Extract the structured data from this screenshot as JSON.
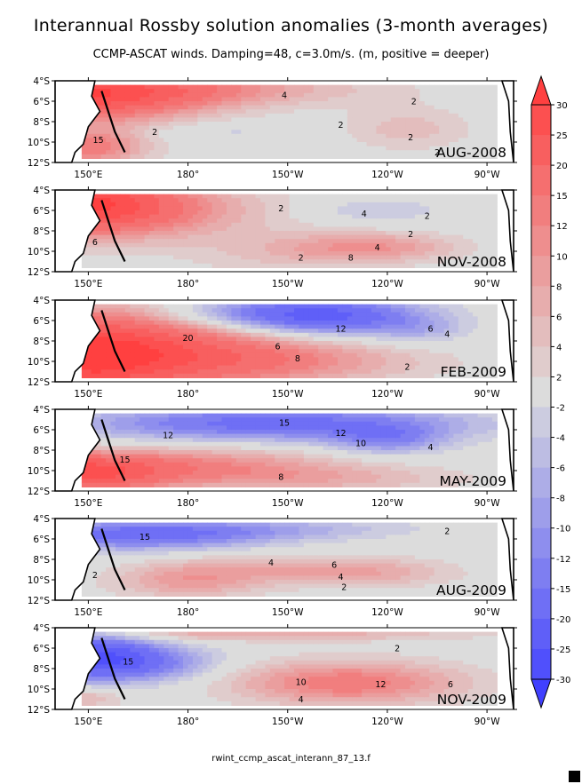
{
  "title": "Interannual Rossby solution anomalies (3-month averages)",
  "subtitle": "CCMP-ASCAT winds. Damping=48, c=3.0m/s. (m, positive = deeper)",
  "footer": "rwint_ccmp_ascat_interann_87_13.f",
  "colors": {
    "positive_max": "#ff4040",
    "neutral": "#dcdcdc",
    "negative_max": "#4040ff",
    "land": "#ffffff",
    "lines": "#000000"
  },
  "chart_data": {
    "type": "heatmap",
    "chart_kind": "contour-map",
    "x_ticks": [
      "150°E",
      "180°",
      "150°W",
      "120°W",
      "90°W"
    ],
    "y_ticks": [
      "4°S",
      "6°S",
      "8°S",
      "10°S",
      "12°S"
    ],
    "x_range_lon": [
      140,
      278
    ],
    "y_range_lat": [
      -4,
      -12
    ],
    "colorbar": {
      "levels": [
        -30,
        -25,
        -20,
        -15,
        -12,
        -10,
        -8,
        -6,
        -4,
        -2,
        2,
        4,
        6,
        8,
        10,
        12,
        15,
        20,
        25,
        30
      ],
      "labels": [
        "30",
        "25",
        "20",
        "15",
        "12",
        "10",
        "8",
        "6",
        "4",
        "2",
        "-2",
        "-4",
        "-6",
        "-8",
        "-10",
        "-12",
        "-15",
        "-20",
        "-25",
        "-30"
      ]
    },
    "panels": [
      {
        "period": "AUG-2008",
        "contour_labels": [
          {
            "text": "4",
            "lon": 209,
            "lat": -5.4
          },
          {
            "text": "2",
            "lon": 248,
            "lat": -6.0
          },
          {
            "text": "15",
            "lon": 153,
            "lat": -9.8
          },
          {
            "text": "2",
            "lon": 170,
            "lat": -9.0
          },
          {
            "text": "2",
            "lon": 226,
            "lat": -8.3
          },
          {
            "text": "2",
            "lon": 247,
            "lat": -9.5
          },
          {
            "text": "2",
            "lon": 255,
            "lat": -11.0
          }
        ],
        "features": [
          {
            "sign": 1,
            "amp": 24,
            "lon": 146,
            "lat": -5.5,
            "slon": 26,
            "slat": 1.8
          },
          {
            "sign": 1,
            "amp": 10,
            "lon": 175,
            "lat": -4.8,
            "slon": 40,
            "slat": 1.2
          },
          {
            "sign": 1,
            "amp": 14,
            "lon": 150,
            "lat": -10.5,
            "slon": 12,
            "slat": 1.2
          },
          {
            "sign": 1,
            "amp": 5,
            "lon": 246,
            "lat": -8.7,
            "slon": 14,
            "slat": 1.5
          },
          {
            "sign": -1,
            "amp": 2.8,
            "lon": 190,
            "lat": -9.0,
            "slon": 16,
            "slat": 0.6
          }
        ]
      },
      {
        "period": "NOV-2008",
        "contour_labels": [
          {
            "text": "2",
            "lon": 208,
            "lat": -5.8
          },
          {
            "text": "4",
            "lon": 233,
            "lat": -6.3
          },
          {
            "text": "2",
            "lon": 252,
            "lat": -6.5
          },
          {
            "text": "2",
            "lon": 247,
            "lat": -8.3
          },
          {
            "text": "6",
            "lon": 152,
            "lat": -9.1
          },
          {
            "text": "4",
            "lon": 237,
            "lat": -9.6
          },
          {
            "text": "2",
            "lon": 214,
            "lat": -10.6
          },
          {
            "text": "8",
            "lon": 229,
            "lat": -10.6
          }
        ],
        "features": [
          {
            "sign": 1,
            "amp": 25,
            "lon": 146,
            "lat": -5.2,
            "slon": 20,
            "slat": 2.0
          },
          {
            "sign": 1,
            "amp": 10,
            "lon": 165,
            "lat": -6.0,
            "slon": 28,
            "slat": 2.0
          },
          {
            "sign": 1,
            "amp": 9,
            "lon": 236,
            "lat": -9.6,
            "slon": 18,
            "slat": 1.0
          },
          {
            "sign": 1,
            "amp": 4,
            "lon": 210,
            "lat": -10.2,
            "slon": 22,
            "slat": 1.5
          },
          {
            "sign": -1,
            "amp": 4,
            "lon": 236,
            "lat": -6.0,
            "slon": 15,
            "slat": 0.9
          }
        ]
      },
      {
        "period": "FEB-2009",
        "contour_labels": [
          {
            "text": "12",
            "lon": 226,
            "lat": -6.8
          },
          {
            "text": "6",
            "lon": 253,
            "lat": -6.8
          },
          {
            "text": "4",
            "lon": 258,
            "lat": -7.3
          },
          {
            "text": "20",
            "lon": 180,
            "lat": -7.7
          },
          {
            "text": "6",
            "lon": 207,
            "lat": -8.5
          },
          {
            "text": "8",
            "lon": 213,
            "lat": -9.7
          },
          {
            "text": "2",
            "lon": 246,
            "lat": -10.5
          }
        ],
        "features": [
          {
            "sign": 1,
            "amp": 25,
            "lon": 146,
            "lat": -9.5,
            "slon": 20,
            "slat": 3.0
          },
          {
            "sign": 1,
            "amp": 16,
            "lon": 175,
            "lat": -9.0,
            "slon": 26,
            "slat": 2.5
          },
          {
            "sign": 1,
            "amp": 9,
            "lon": 210,
            "lat": -10.0,
            "slon": 30,
            "slat": 1.5
          },
          {
            "sign": -1,
            "amp": 18,
            "lon": 222,
            "lat": -5.6,
            "slon": 20,
            "slat": 1.3
          },
          {
            "sign": -1,
            "amp": 9,
            "lon": 200,
            "lat": -5.3,
            "slon": 22,
            "slat": 1.1
          },
          {
            "sign": -1,
            "amp": 5,
            "lon": 250,
            "lat": -7.0,
            "slon": 10,
            "slat": 1.0
          }
        ]
      },
      {
        "period": "MAY-2009",
        "contour_labels": [
          {
            "text": "15",
            "lon": 209,
            "lat": -5.3
          },
          {
            "text": "12",
            "lon": 174,
            "lat": -6.5
          },
          {
            "text": "12",
            "lon": 226,
            "lat": -6.3
          },
          {
            "text": "10",
            "lon": 232,
            "lat": -7.3
          },
          {
            "text": "4",
            "lon": 253,
            "lat": -7.7
          },
          {
            "text": "15",
            "lon": 161,
            "lat": -8.9
          },
          {
            "text": "8",
            "lon": 208,
            "lat": -10.6
          }
        ],
        "features": [
          {
            "sign": -1,
            "amp": 17,
            "lon": 205,
            "lat": -5.4,
            "slon": 40,
            "slat": 1.2
          },
          {
            "sign": -1,
            "amp": 10,
            "lon": 240,
            "lat": -7.0,
            "slon": 12,
            "slat": 1.0
          },
          {
            "sign": 1,
            "amp": 24,
            "lon": 146,
            "lat": -10.3,
            "slon": 18,
            "slat": 1.3
          },
          {
            "sign": 1,
            "amp": 11,
            "lon": 180,
            "lat": -9.5,
            "slon": 30,
            "slat": 1.3
          },
          {
            "sign": 1,
            "amp": 6,
            "lon": 220,
            "lat": -10.8,
            "slon": 30,
            "slat": 1.0
          }
        ]
      },
      {
        "period": "AUG-2009",
        "contour_labels": [
          {
            "text": "15",
            "lon": 167,
            "lat": -5.8
          },
          {
            "text": "2",
            "lon": 258,
            "lat": -5.2
          },
          {
            "text": "4",
            "lon": 205,
            "lat": -8.3
          },
          {
            "text": "6",
            "lon": 224,
            "lat": -8.5
          },
          {
            "text": "4",
            "lon": 226,
            "lat": -9.7
          },
          {
            "text": "2",
            "lon": 152,
            "lat": -9.5
          },
          {
            "text": "2",
            "lon": 227,
            "lat": -10.7
          }
        ],
        "features": [
          {
            "sign": -1,
            "amp": 17,
            "lon": 165,
            "lat": -5.6,
            "slon": 28,
            "slat": 1.0
          },
          {
            "sign": -1,
            "amp": 5,
            "lon": 210,
            "lat": -5.0,
            "slon": 28,
            "slat": 0.7
          },
          {
            "sign": 1,
            "amp": 9,
            "lon": 180,
            "lat": -10.1,
            "slon": 16,
            "slat": 1.2
          },
          {
            "sign": 1,
            "amp": 7,
            "lon": 235,
            "lat": -9.3,
            "slon": 18,
            "slat": 1.0
          },
          {
            "sign": 1,
            "amp": 5,
            "lon": 205,
            "lat": -8.8,
            "slon": 20,
            "slat": 1.0
          }
        ]
      },
      {
        "period": "NOV-2009",
        "contour_labels": [
          {
            "text": "2",
            "lon": 243,
            "lat": -6.0
          },
          {
            "text": "15",
            "lon": 162,
            "lat": -7.3
          },
          {
            "text": "10",
            "lon": 214,
            "lat": -9.3
          },
          {
            "text": "12",
            "lon": 238,
            "lat": -9.5
          },
          {
            "text": "6",
            "lon": 259,
            "lat": -9.5
          },
          {
            "text": "4",
            "lon": 214,
            "lat": -11.0
          }
        ],
        "features": [
          {
            "sign": -1,
            "amp": 24,
            "lon": 150,
            "lat": -6.8,
            "slon": 14,
            "slat": 1.6
          },
          {
            "sign": -1,
            "amp": 10,
            "lon": 170,
            "lat": -7.5,
            "slon": 14,
            "slat": 1.2
          },
          {
            "sign": 1,
            "amp": 14,
            "lon": 228,
            "lat": -9.4,
            "slon": 24,
            "slat": 1.5
          },
          {
            "sign": 1,
            "amp": 8,
            "lon": 200,
            "lat": -4.6,
            "slon": 44,
            "slat": 0.5
          },
          {
            "sign": 1,
            "amp": 6,
            "lon": 150,
            "lat": -10.8,
            "slon": 8,
            "slat": 0.8
          }
        ]
      }
    ]
  }
}
